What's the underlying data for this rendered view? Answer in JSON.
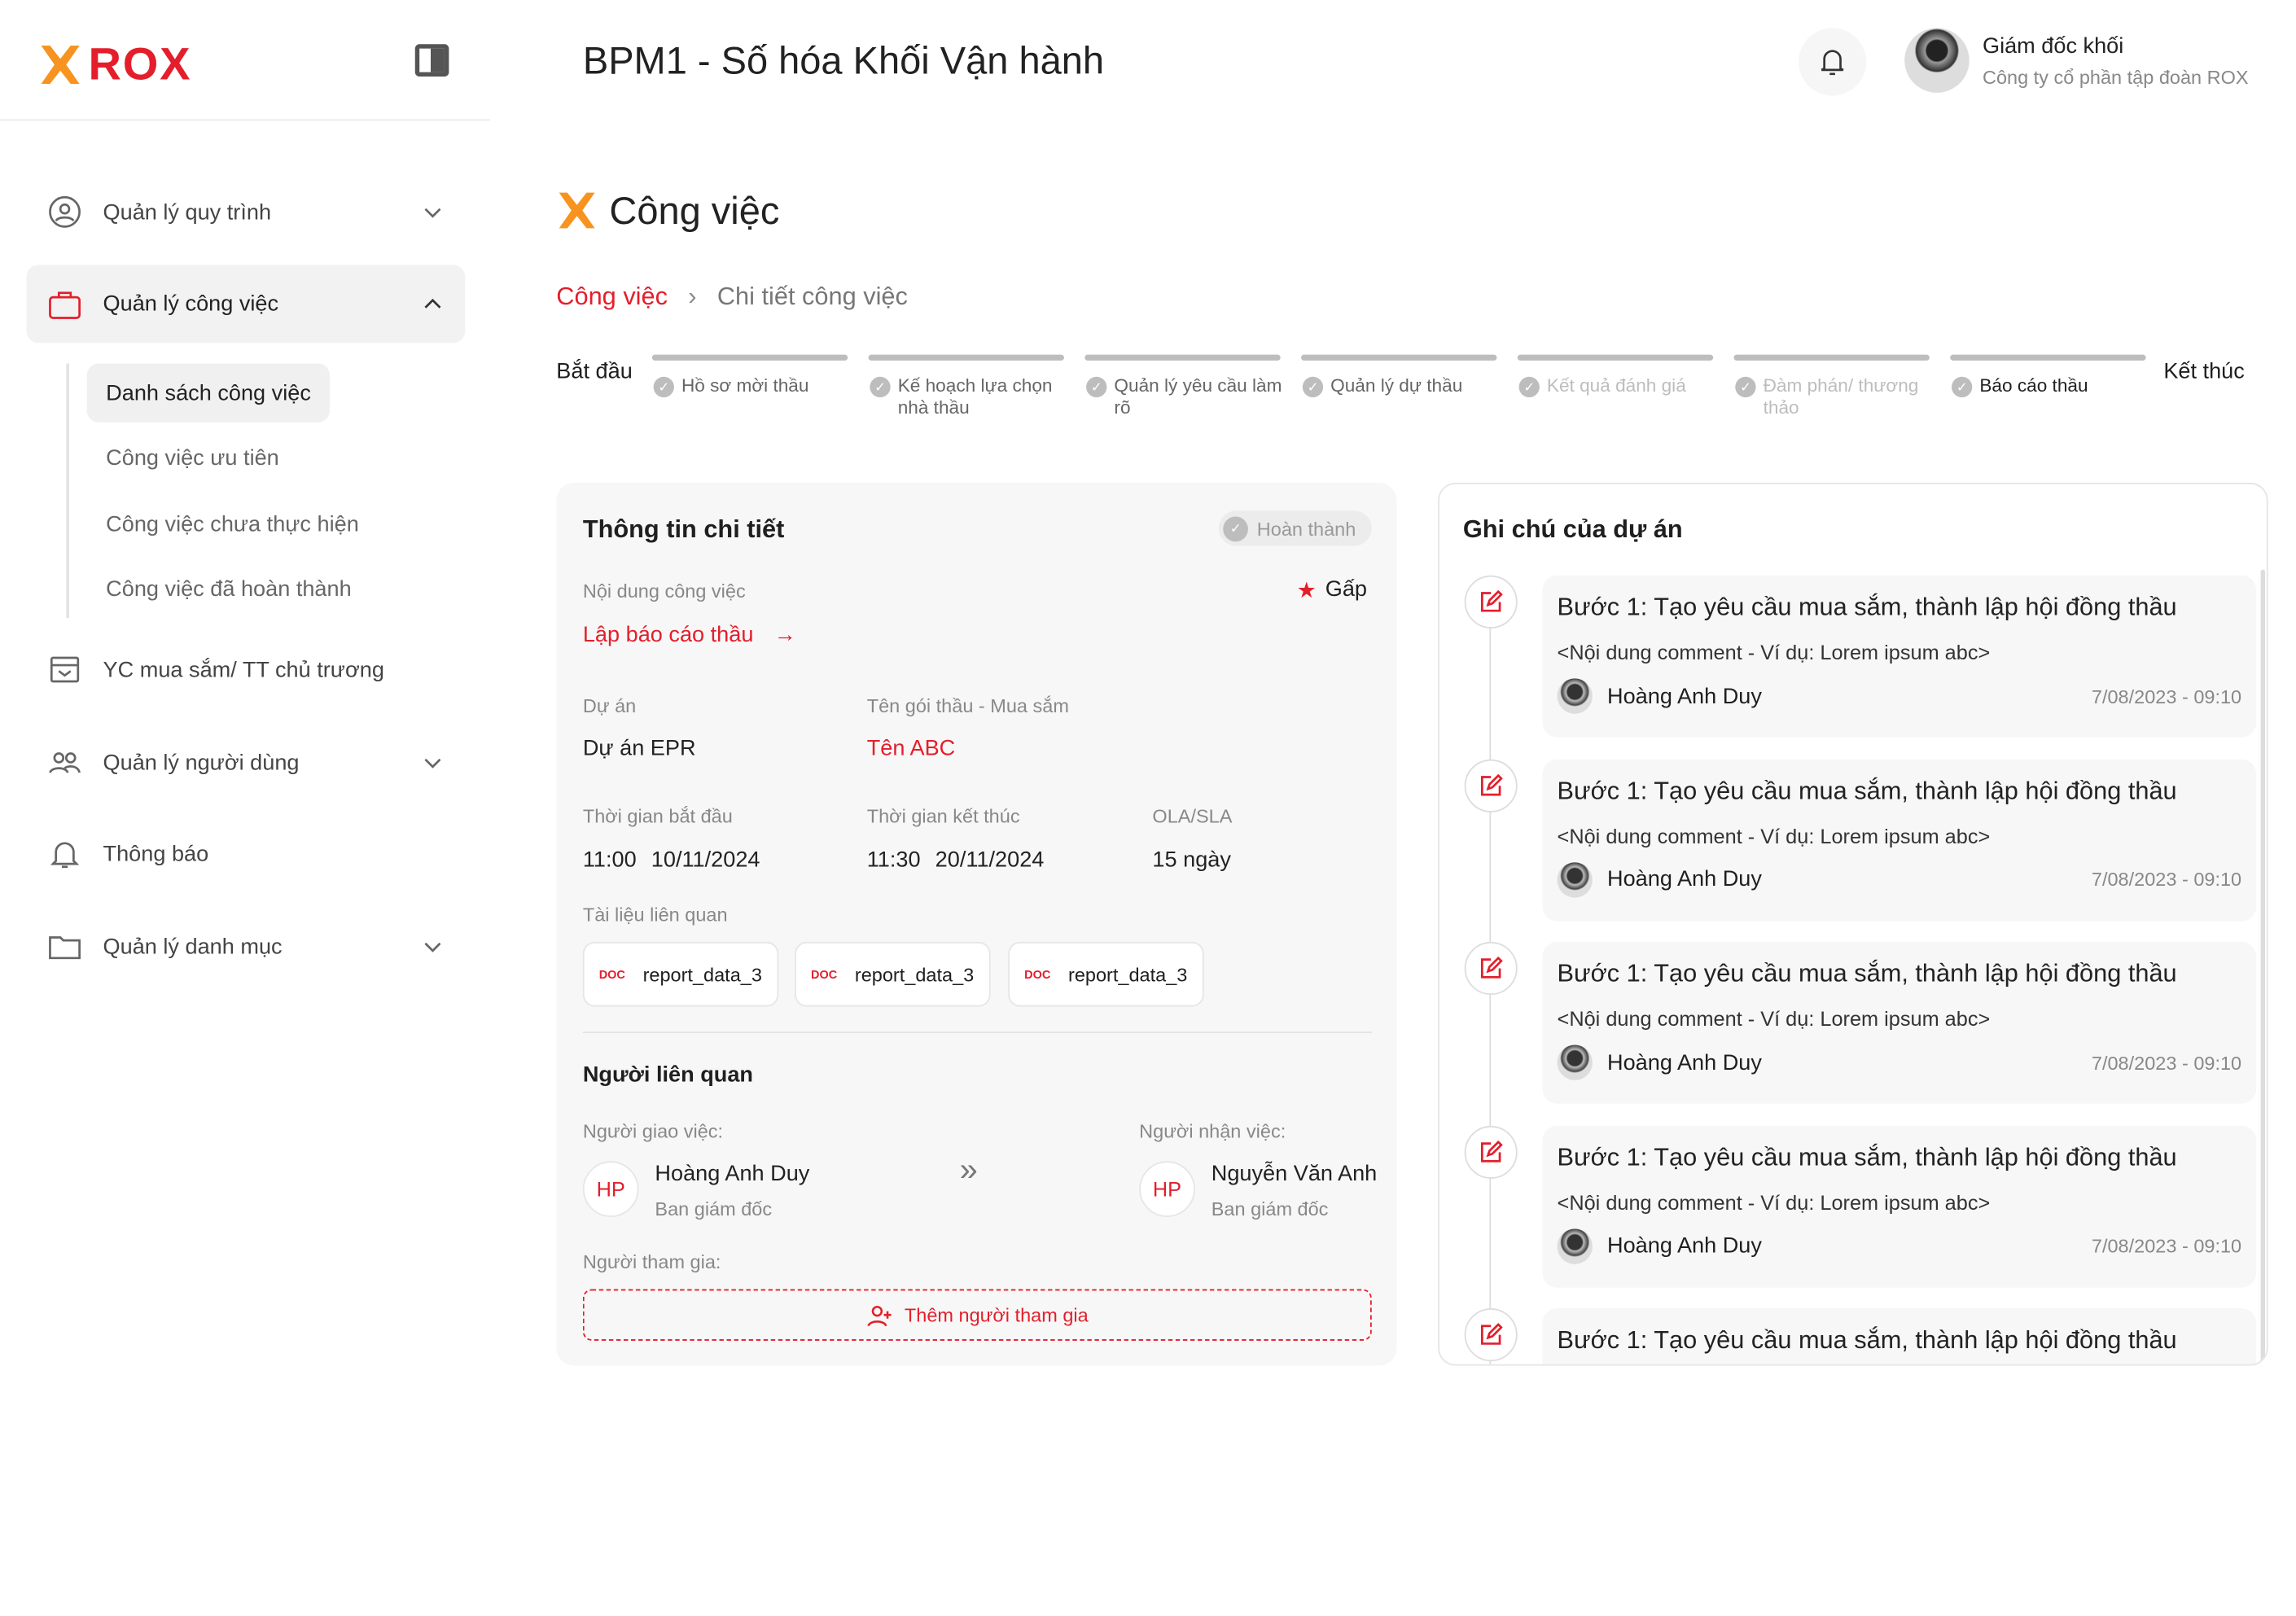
{
  "brand": {
    "logo_text": "ROX",
    "colors": {
      "primary": "#E41E2B",
      "logo_orange": "#F7931E"
    }
  },
  "header": {
    "title": "BPM1 - Số hóa Khối Vận hành",
    "user_name": "Giám đốc khối",
    "user_company": "Công ty cổ phần tập đoàn ROX"
  },
  "sidebar": {
    "items": [
      {
        "label": "Quản lý quy trình",
        "icon": "user-gear-icon",
        "expandable": true
      },
      {
        "label": "Quản lý công việc",
        "icon": "briefcase-icon",
        "expandable": true,
        "expanded": true,
        "active": true
      },
      {
        "label": "YC mua sắm/ TT chủ trương",
        "icon": "inbox-icon"
      },
      {
        "label": "Quản lý người dùng",
        "icon": "users-icon",
        "expandable": true
      },
      {
        "label": "Thông báo",
        "icon": "bell-icon"
      },
      {
        "label": "Quản lý danh mục",
        "icon": "folder-icon",
        "expandable": true
      }
    ],
    "subitems": [
      {
        "label": "Danh sách công việc",
        "active": true
      },
      {
        "label": "Công việc ưu tiên"
      },
      {
        "label": "Công việc chưa thực hiện"
      },
      {
        "label": "Công việc đã hoàn thành"
      }
    ]
  },
  "page": {
    "title": "Công việc",
    "breadcrumb": [
      "Công việc",
      "Chi tiết công việc"
    ]
  },
  "stepper": {
    "start": "Bắt đầu",
    "end": "Kết thúc",
    "steps": [
      {
        "label": "Hồ sơ mời thầu",
        "state": "done"
      },
      {
        "label": "Kế hoạch lựa chọn nhà thầu",
        "state": "done"
      },
      {
        "label": "Quản lý yêu cầu làm rõ",
        "state": "done"
      },
      {
        "label": "Quản lý dự thầu",
        "state": "done"
      },
      {
        "label": "Kết quả đánh giá",
        "state": "inactive"
      },
      {
        "label": "Đàm phán/ thương thảo",
        "state": "inactive"
      },
      {
        "label": "Báo cáo thầu",
        "state": "current"
      }
    ]
  },
  "detail": {
    "title": "Thông tin chi tiết",
    "status": "Hoàn thành",
    "content_label": "Nội dung công việc",
    "priority": "Gấp",
    "task_link": "Lập báo cáo thầu",
    "project_label": "Dự án",
    "project": "Dự án EPR",
    "package_label": "Tên gói thầu - Mua sắm",
    "package": "Tên ABC",
    "start_label": "Thời gian bắt đầu",
    "start_time": "11:00",
    "start_date": "10/11/2024",
    "end_label": "Thời gian kết thúc",
    "end_time": "11:30",
    "end_date": "20/11/2024",
    "sla_label": "OLA/SLA",
    "sla": "15 ngày",
    "docs_label": "Tài liệu liên quan",
    "docs": [
      "report_data_3",
      "report_data_3",
      "report_data_3"
    ],
    "people_title": "Người liên quan",
    "assigner_label": "Người giao việc:",
    "assigner": {
      "initials": "HP",
      "name": "Hoàng Anh Duy",
      "dept": "Ban giám đốc"
    },
    "assignee_label": "Người nhận việc:",
    "assignee": {
      "initials": "HP",
      "name": "Nguyễn Văn Anh",
      "dept": "Ban giám đốc"
    },
    "participants_label": "Người tham gia:",
    "add_participant": "Thêm người tham gia"
  },
  "notes": {
    "title": "Ghi chú của dự án",
    "items": [
      {
        "title": "Bước 1: Tạo yêu cầu mua sắm, thành lập hội đồng thầu",
        "comment": "<Nội dung comment - Ví dụ: Lorem ipsum abc>",
        "author": "Hoàng Anh Duy",
        "time": "7/08/2023 - 09:10"
      },
      {
        "title": "Bước 1: Tạo yêu cầu mua sắm, thành lập hội đồng thầu",
        "comment": "<Nội dung comment - Ví dụ: Lorem ipsum abc>",
        "author": "Hoàng Anh Duy",
        "time": "7/08/2023 - 09:10"
      },
      {
        "title": "Bước 1: Tạo yêu cầu mua sắm, thành lập hội đồng thầu",
        "comment": "<Nội dung comment - Ví dụ: Lorem ipsum abc>",
        "author": "Hoàng Anh Duy",
        "time": "7/08/2023 - 09:10"
      },
      {
        "title": "Bước 1: Tạo yêu cầu mua sắm, thành lập hội đồng thầu",
        "comment": "<Nội dung comment - Ví dụ: Lorem ipsum abc>",
        "author": "Hoàng Anh Duy",
        "time": "7/08/2023 - 09:10"
      },
      {
        "title": "Bước 1: Tạo yêu cầu mua sắm, thành lập hội đồng thầu"
      }
    ]
  }
}
